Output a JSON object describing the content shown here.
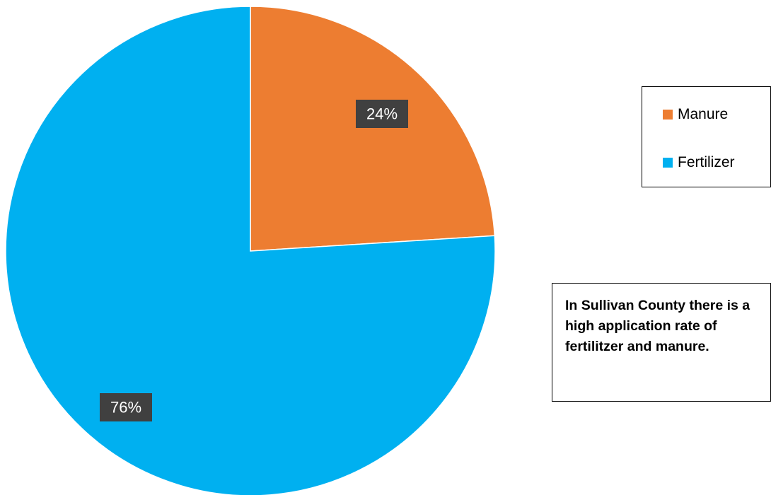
{
  "chart_data": {
    "type": "pie",
    "categories": [
      "Manure",
      "Fertilizer"
    ],
    "values": [
      24,
      76
    ],
    "data_labels": [
      "24%",
      "76%"
    ],
    "colors": [
      "#ED7D31",
      "#00B0F0"
    ],
    "title": "",
    "legend_position": "right"
  },
  "legend": {
    "items": [
      {
        "label": "Manure",
        "color": "#ED7D31"
      },
      {
        "label": "Fertilizer",
        "color": "#00B0F0"
      }
    ]
  },
  "note": {
    "text": "In Sullivan County there is a\nhigh application rate of\nfertilitzer and manure."
  }
}
